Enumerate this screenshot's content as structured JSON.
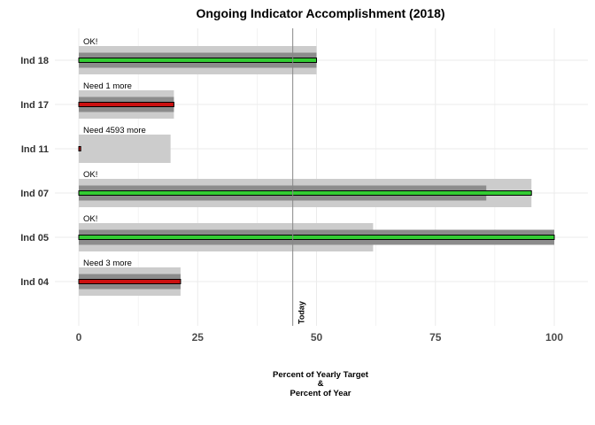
{
  "chart_data": {
    "type": "bar",
    "title": "Ongoing Indicator Accomplishment (2018)",
    "xlabel_lines": [
      "Percent of Yearly Target",
      "&",
      "Percent of Year"
    ],
    "xlim": [
      0,
      100
    ],
    "x_ticks": [
      0,
      25,
      50,
      75,
      100
    ],
    "x_tick_labels": [
      "0",
      "25",
      "50",
      "75",
      "100"
    ],
    "today_value": 45,
    "today_label": "Today",
    "grid": true,
    "colors": {
      "light_band": "#cccccc",
      "dark_band": "#8c8c8c",
      "ok_bar": "#33cc33",
      "need_bar": "#cc1111",
      "bar_outline": "#000000",
      "today_line": "#888888",
      "grid": "#ebebeb"
    },
    "indicators": [
      {
        "label": "Ind 18",
        "light": 50,
        "dark": 50,
        "actual": 50,
        "status": "ok",
        "note": "OK!"
      },
      {
        "label": "Ind 17",
        "light": 20,
        "dark": 20,
        "actual": 20,
        "status": "need",
        "note": "Need 1 more"
      },
      {
        "label": "Ind 11",
        "light": 19.3,
        "dark": 0,
        "actual": 0.4,
        "status": "need",
        "note": "Need 4593 more"
      },
      {
        "label": "Ind 07",
        "light": 95.2,
        "dark": 85.7,
        "actual": 95.2,
        "status": "ok",
        "note": "OK!"
      },
      {
        "label": "Ind 05",
        "light": 61.9,
        "dark": 100,
        "actual": 100,
        "status": "ok",
        "note": "OK!"
      },
      {
        "label": "Ind 04",
        "light": 21.4,
        "dark": 21.4,
        "actual": 21.4,
        "status": "need",
        "note": "Need 3 more"
      }
    ]
  }
}
